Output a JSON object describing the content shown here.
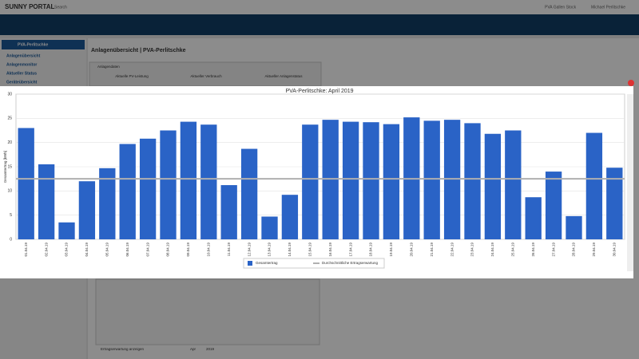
{
  "header": {
    "logo": "SUNNY PORTAL",
    "search": "Search",
    "plant_menu": "PVA Gallen Stock",
    "user": "Michael Perlitschke"
  },
  "sidebar": {
    "plant": "PVA-Perlitschke",
    "items": [
      "Anlagenübersicht",
      "Anlagenmonitor",
      "Aktueller Status",
      "Geräteübersicht"
    ]
  },
  "page": {
    "heading": "Anlagenübersicht | PVA-Perlitschke",
    "panel": "Anlagendaten",
    "cards": [
      "Aktuelle PV-Leistung",
      "Aktueller Verbrauch",
      "Aktueller Anlagenstatus"
    ],
    "checkbox": "Ertragserwartung anzeigen",
    "month": "Apr",
    "year": "2019"
  },
  "chart_data": {
    "type": "bar",
    "title": "PVA-Perlitschke: April 2019",
    "y_label": "Gesamtertrag [kWh]",
    "categories": [
      "01.04.19",
      "02.04.19",
      "03.04.19",
      "04.04.19",
      "05.04.19",
      "06.04.19",
      "07.04.19",
      "08.04.19",
      "09.04.19",
      "10.04.19",
      "11.04.19",
      "12.04.19",
      "13.04.19",
      "14.04.19",
      "15.04.19",
      "16.04.19",
      "17.04.19",
      "18.04.19",
      "19.04.19",
      "20.04.19",
      "21.04.19",
      "22.04.19",
      "23.04.19",
      "24.04.19",
      "25.04.19",
      "26.04.19",
      "27.04.19",
      "28.04.19",
      "29.04.19",
      "30.04.19"
    ],
    "series": [
      {
        "name": "Gesamtertrag",
        "color": "#2a63c6",
        "values": [
          23.0,
          15.5,
          3.5,
          12.0,
          14.7,
          19.7,
          20.8,
          22.5,
          24.3,
          23.7,
          11.2,
          18.7,
          4.7,
          9.2,
          23.7,
          24.7,
          24.3,
          24.2,
          23.8,
          25.2,
          24.5,
          24.7,
          24.0,
          21.8,
          22.5,
          8.7,
          14.0,
          4.8,
          22.0,
          14.8
        ]
      }
    ],
    "reference_line": {
      "name": "Durchschnittliche Ertragserwartung",
      "value": 12.5,
      "color": "#b0b0b0"
    },
    "ylim": [
      0,
      30
    ],
    "yticks": [
      0,
      5,
      10,
      15,
      20,
      25,
      30
    ],
    "grid": true
  }
}
